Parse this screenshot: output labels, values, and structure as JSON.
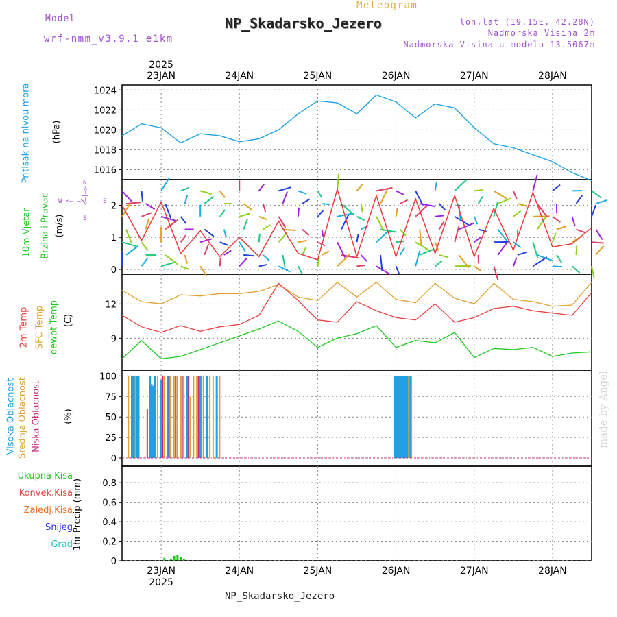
{
  "header": {
    "model_label": "Model",
    "model_name": "wrf-nmm_v3.9.1 e1km",
    "subtitle": "Meteogram",
    "station": "NP_Skadarsko_Jezero",
    "coords": "lon,lat (19.15E, 42.28N)",
    "elev": "Nadmorska Visina 2m",
    "elev_model": "Nadmorska Visina u modelu 13.5067m",
    "credit": "made by Angel",
    "footer": "NP_Skadarsko_Jezero"
  },
  "axis_labels": {
    "pressure_title": "Pritisak na nivou mora",
    "pressure_unit": "(hPa)",
    "wind_title_1": "10m Vjetar",
    "wind_title_2": "Brzina i Pravac",
    "wind_unit": "(m/s)",
    "temp_title_1": "2m Temp",
    "temp_title_2": "SFC Temp",
    "temp_title_3": "dewpt Temp",
    "temp_unit": "(C)",
    "cloud_title_1": "Visoka Oblacnost",
    "cloud_title_2": "Srednja Oblacnost",
    "cloud_title_3": "Niska Oblacnost",
    "cloud_unit": "(%)",
    "precip_unit": "1hr Precip (mm)",
    "compass_n": "N",
    "compass_s": "S",
    "compass_w": "W",
    "compass_e": "E"
  },
  "precip_legend": [
    "Ukupna Kisa",
    "Konvek.Kisa",
    "Zaledj.Kisa",
    "Snijeg",
    "Grad"
  ],
  "colors": {
    "pressure": "#1ea0e6",
    "temp2m": "#e84040",
    "sfc": "#e0a030",
    "dewpt": "#20c820",
    "wind_speed": "#e83a3a",
    "wind_black": "#000000",
    "cloud_high": "#1ea0e6",
    "cloud_mid": "#e0a030",
    "cloud_low": "#c8287a",
    "model": "#a050d0",
    "subtitle": "#e0b050",
    "precip_total": "#20c820",
    "precip_conv": "#e84040",
    "precip_frz": "#f07020",
    "precip_snow": "#3030e0",
    "precip_grad": "#20c0c0"
  },
  "chart_data": {
    "type": "line",
    "year": "2025",
    "days": [
      "23JAN",
      "24JAN",
      "25JAN",
      "26JAN",
      "27JAN",
      "28JAN"
    ],
    "time_hours": [
      0,
      6,
      12,
      18,
      24,
      30,
      36,
      42,
      48,
      54,
      60,
      66,
      72,
      78,
      84,
      90,
      96,
      102,
      108,
      114,
      120,
      126,
      132,
      138,
      144
    ],
    "panels": [
      {
        "name": "pressure",
        "yticks": [
          1016,
          1018,
          1020,
          1022,
          1024
        ],
        "series": [
          {
            "name": "Pritisak na nivou mora",
            "unit": "hPa",
            "values": [
              1019.4,
              1020.6,
              1020.2,
              1018.7,
              1019.6,
              1019.4,
              1018.8,
              1019.1,
              1020.0,
              1021.6,
              1022.9,
              1022.7,
              1021.6,
              1023.5,
              1022.8,
              1021.2,
              1022.6,
              1022.2,
              1020.2,
              1018.6,
              1018.2,
              1017.5,
              1016.8,
              1015.7,
              1014.9
            ]
          }
        ]
      },
      {
        "name": "wind",
        "yticks": [
          0,
          1,
          2
        ],
        "series": [
          {
            "name": "Brzina",
            "unit": "m/s",
            "values": [
              2.0,
              0.9,
              2.1,
              0.5,
              1.2,
              0.4,
              1.0,
              0.4,
              1.5,
              0.5,
              0.3,
              2.5,
              0.4,
              2.3,
              0.4,
              2.2,
              0.5,
              2.3,
              0.4,
              1.9,
              0.6,
              2.4,
              0.7,
              0.8,
              1.3
            ]
          }
        ]
      },
      {
        "name": "temperature",
        "yticks": [
          9,
          12
        ],
        "series": [
          {
            "name": "2m Temp",
            "unit": "C",
            "values": [
              11.0,
              10.0,
              9.5,
              10.1,
              9.6,
              10.0,
              10.2,
              11.0,
              13.8,
              12.3,
              10.6,
              10.4,
              12.2,
              11.4,
              10.8,
              10.6,
              12.0,
              10.4,
              10.8,
              11.6,
              11.8,
              11.4,
              11.2,
              11.0,
              13.0
            ]
          },
          {
            "name": "SFC Temp",
            "unit": "C",
            "values": [
              13.2,
              12.2,
              12.0,
              12.8,
              12.7,
              12.9,
              12.9,
              13.1,
              13.7,
              12.6,
              12.3,
              13.9,
              12.6,
              13.9,
              12.4,
              12.1,
              13.8,
              12.5,
              12.0,
              13.8,
              12.4,
              12.2,
              11.8,
              11.9,
              13.9
            ]
          },
          {
            "name": "dewpt Temp",
            "unit": "C",
            "values": [
              7.2,
              8.8,
              7.2,
              7.4,
              8.0,
              8.6,
              9.2,
              9.8,
              10.5,
              9.6,
              8.2,
              9.0,
              9.4,
              10.1,
              8.2,
              8.8,
              8.6,
              9.5,
              7.3,
              8.1,
              8.0,
              8.2,
              7.4,
              7.7,
              7.8
            ]
          }
        ]
      },
      {
        "name": "cloud",
        "yticks": [
          0,
          25,
          50,
          75,
          100
        ],
        "series": [
          {
            "name": "Visoka Oblacnost",
            "unit": "%",
            "x_hours": [
              3,
              3.5,
              4,
              4.5,
              5,
              8.5,
              9,
              9.5,
              10,
              12,
              14,
              20,
              24,
              26,
              29,
              83.5,
              84,
              84.5,
              85,
              85.5,
              86,
              86.5,
              87,
              87.5,
              88,
              88.5
            ],
            "values": [
              100,
              100,
              100,
              100,
              100,
              100,
              90,
              88,
              100,
              95,
              100,
              100,
              100,
              100,
              100,
              100,
              100,
              100,
              100,
              100,
              100,
              100,
              100,
              100,
              100,
              100
            ]
          },
          {
            "name": "Srednja Oblacnost",
            "unit": "%",
            "x_hours": [
              2,
              4.2,
              11,
              13,
              15,
              16,
              17,
              18,
              19,
              21,
              22,
              23,
              25,
              27,
              28,
              30,
              88,
              88.8
            ],
            "values": [
              100,
              100,
              100,
              100,
              100,
              100,
              100,
              100,
              100,
              75,
              100,
              100,
              100,
              100,
              100,
              100,
              100,
              95
            ]
          },
          {
            "name": "Niska Oblacnost",
            "unit": "%",
            "x_hours": [
              7.8,
              12.5,
              14.5,
              16.5,
              18.5,
              20.5,
              23.5
            ],
            "values": [
              60,
              100,
              100,
              100,
              100,
              100,
              100
            ]
          }
        ]
      },
      {
        "name": "precip",
        "yticks": [
          0,
          0.2,
          0.4,
          0.6,
          0.8
        ],
        "series": [
          {
            "name": "Ukupna Kisa",
            "unit": "mm",
            "x_hours": [
              13,
              15,
              16,
              17,
              18,
              19
            ],
            "values": [
              0.03,
              0.02,
              0.05,
              0.06,
              0.04,
              0.02
            ]
          }
        ]
      }
    ]
  }
}
